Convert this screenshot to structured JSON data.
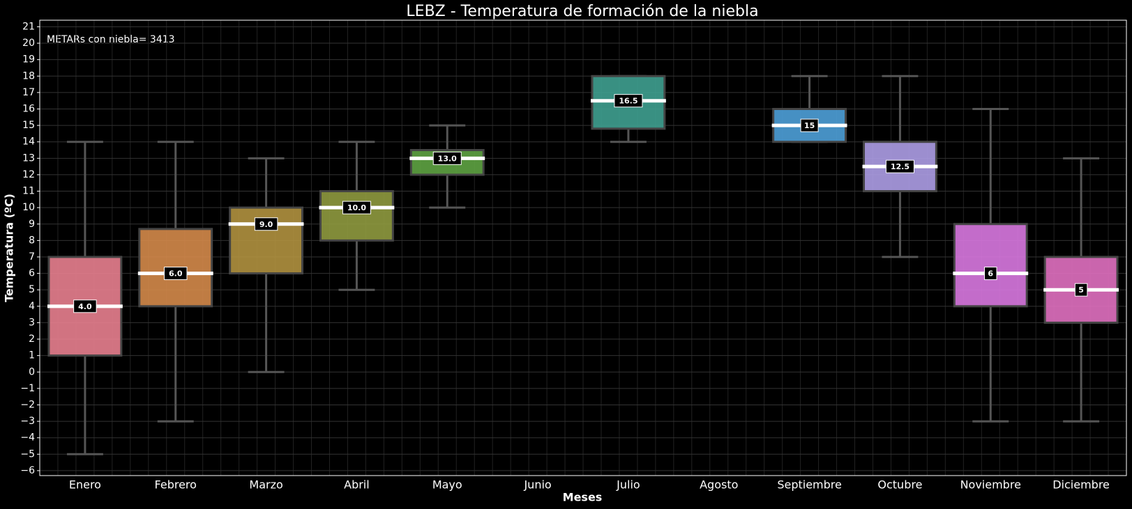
{
  "chart_data": {
    "type": "box",
    "title": "LEBZ - Temperatura de formación de la niebla",
    "annotation": "METARs con niebla= 3413",
    "x_label": "Meses",
    "y_label": "Temperatura (ºC)",
    "categories": [
      "Enero",
      "Febrero",
      "Marzo",
      "Abril",
      "Mayo",
      "Junio",
      "Julio",
      "Agosto",
      "Septiembre",
      "Octubre",
      "Noviembre",
      "Diciembre"
    ],
    "whisker_low": [
      -5,
      -3,
      0,
      5,
      10,
      null,
      14,
      null,
      14,
      7,
      -3,
      -3
    ],
    "q1": [
      1,
      4,
      6,
      8,
      12,
      null,
      14.8,
      null,
      14,
      11,
      4,
      3
    ],
    "median": [
      4,
      6,
      9,
      10,
      13,
      null,
      16.5,
      null,
      15,
      12.5,
      6,
      5
    ],
    "q3": [
      7,
      8.7,
      10,
      11,
      13.5,
      null,
      18,
      null,
      16,
      14,
      9,
      7
    ],
    "whisker_high": [
      14,
      14,
      13,
      14,
      15,
      null,
      18,
      null,
      18,
      18,
      16,
      13
    ],
    "value_labels": [
      "4.0",
      "6.0",
      "9.0",
      "10.0",
      "13.0",
      null,
      "16.5",
      null,
      "15",
      "12.5",
      "6",
      "5"
    ],
    "colors": [
      "#e8808f",
      "#d4894a",
      "#b0913f",
      "#8f9a3f",
      "#5ea343",
      null,
      "#3fa090",
      null,
      "#4ea0d8",
      "#ad9de6",
      "#d878e0",
      "#e070c0"
    ],
    "ylim": [
      -6.3,
      21.4
    ],
    "yticks": [
      {
        "value": -6,
        "label": "−6"
      },
      {
        "value": -5,
        "label": "−5"
      },
      {
        "value": -4,
        "label": "−4"
      },
      {
        "value": -3,
        "label": "−3"
      },
      {
        "value": -2,
        "label": "−2"
      },
      {
        "value": -1,
        "label": "−1"
      },
      0,
      1,
      2,
      3,
      4,
      5,
      6,
      7,
      8,
      9,
      10,
      11,
      12,
      13,
      14,
      15,
      16,
      17,
      18,
      19,
      20,
      21
    ],
    "grid": true
  }
}
